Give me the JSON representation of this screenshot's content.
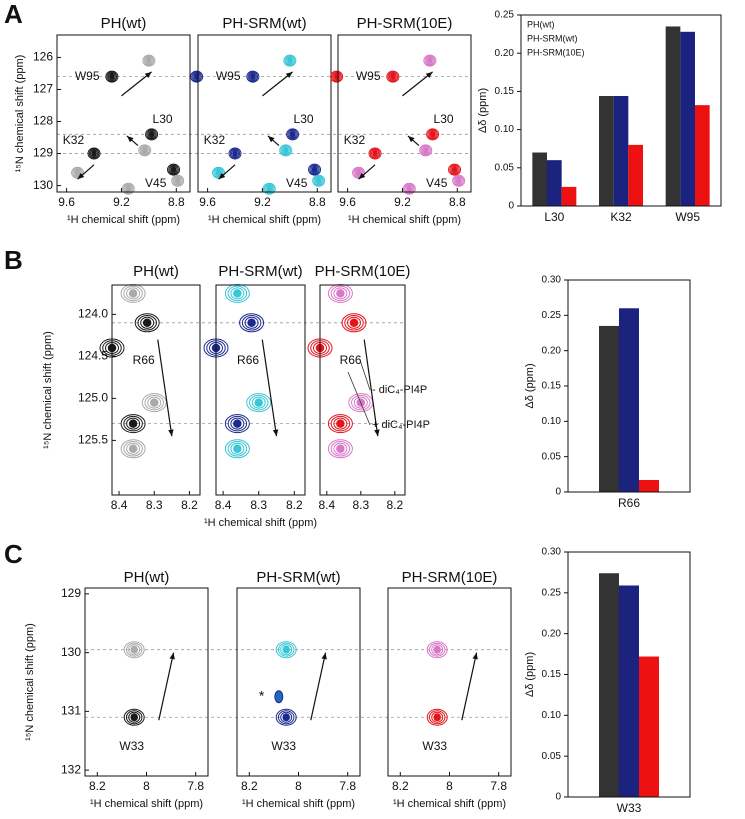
{
  "figure": {
    "panels": [
      {
        "letter": "A",
        "titles": [
          "PH(wt)",
          "PH-SRM(wt)",
          "PH-SRM(10E)"
        ],
        "title_colors": [
          "#111111",
          "#1b2a8c",
          "#e5141c"
        ],
        "ylabel": "¹⁵N chemical shift  (ppm)",
        "xlabel": "¹H chemical shift  (ppm)",
        "xlim": [
          9.67,
          8.7
        ],
        "ylim": [
          125.3,
          130.2
        ],
        "xticks": [
          9.6,
          9.2,
          8.8
        ],
        "yticks": [
          126,
          127,
          128,
          129,
          130
        ],
        "residues": [
          "W95",
          "L30",
          "K32",
          "V45"
        ]
      },
      {
        "letter": "B",
        "titles": [
          "PH(wt)",
          "PH-SRM(wt)",
          "PH-SRM(10E)"
        ],
        "title_colors": [
          "#111111",
          "#1b2a8c",
          "#e5141c"
        ],
        "ylabel": "¹⁵N chemical shift  (ppm)",
        "xlabel": "¹H chemical shift  (ppm)",
        "xlim": [
          8.42,
          8.17
        ],
        "ylim": [
          123.65,
          126.15
        ],
        "xticks": [
          8.4,
          8.3,
          8.2
        ],
        "yticks": [
          {
            "value": 124,
            "label": "124.0"
          },
          124.5,
          {
            "value": 125,
            "label": "125.0"
          },
          125.5
        ],
        "residues": [
          "R66"
        ],
        "ligand_labels": [
          "- diC₄-PI4P",
          "+ diC₄-PI4P"
        ]
      },
      {
        "letter": "C",
        "titles": [
          "PH(wt)",
          "PH-SRM(wt)",
          "PH-SRM(10E)"
        ],
        "title_colors": [
          "#111111",
          "#1b2a8c",
          "#e5141c"
        ],
        "ylabel": "¹⁵N chemical shift  (ppm)",
        "xlabel": "¹H chemical shift  (ppm)",
        "xlim": [
          8.25,
          7.75
        ],
        "ylim": [
          128.9,
          132.1
        ],
        "xticks": [
          8.2,
          8.0,
          7.8
        ],
        "yticks": [
          129,
          130,
          131,
          132
        ],
        "residues": [
          "W33"
        ],
        "marker": "*"
      }
    ]
  },
  "chart_data": [
    {
      "type": "bar",
      "ylabel": "Δδ (ppm)",
      "categories": [
        "L30",
        "K32",
        "W95"
      ],
      "series": [
        {
          "name": "PH(wt)",
          "color": "#333333",
          "values": [
            0.07,
            0.144,
            0.235
          ]
        },
        {
          "name": "PH-SRM(wt)",
          "color": "#1b237e",
          "values": [
            0.06,
            0.144,
            0.228
          ]
        },
        {
          "name": "PH-SRM(10E)",
          "color": "#ee1111",
          "values": [
            0.025,
            0.08,
            0.132
          ]
        }
      ],
      "ylim": [
        0,
        0.25
      ],
      "yticks": [
        0,
        0.05,
        {
          "value": 0.1,
          "label": "0.10"
        },
        0.15,
        {
          "value": 0.2,
          "label": "0.20"
        },
        0.25
      ],
      "legend": "upper left"
    },
    {
      "type": "bar",
      "ylabel": "Δδ (ppm)",
      "categories": [
        "R66"
      ],
      "series": [
        {
          "color": "#333333",
          "values": [
            0.235
          ]
        },
        {
          "color": "#1b237e",
          "values": [
            0.26
          ]
        },
        {
          "color": "#ee1111",
          "values": [
            0.017
          ]
        }
      ],
      "ylim": [
        0,
        0.3
      ],
      "yticks": [
        0,
        0.05,
        {
          "value": 0.1,
          "label": "0.10"
        },
        0.15,
        {
          "value": 0.2,
          "label": "0.20"
        },
        0.25,
        {
          "value": 0.3,
          "label": "0.30"
        }
      ]
    },
    {
      "type": "bar",
      "ylabel": "Δδ (ppm)",
      "categories": [
        "W33"
      ],
      "series": [
        {
          "color": "#333333",
          "values": [
            0.274
          ]
        },
        {
          "color": "#1b237e",
          "values": [
            0.259
          ]
        },
        {
          "color": "#ee1111",
          "values": [
            0.172
          ]
        }
      ],
      "ylim": [
        0,
        0.3
      ],
      "yticks": [
        0,
        0.05,
        {
          "value": 0.1,
          "label": "0.10"
        },
        0.15,
        {
          "value": 0.2,
          "label": "0.20"
        },
        0.25,
        {
          "value": 0.3,
          "label": "0.30"
        }
      ]
    }
  ]
}
